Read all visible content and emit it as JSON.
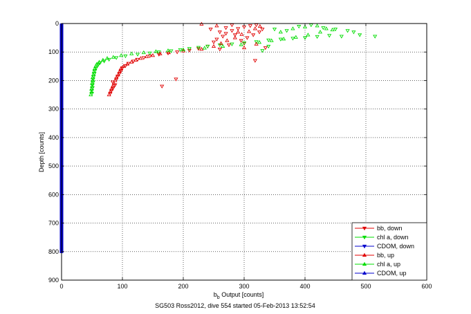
{
  "chart_data": {
    "type": "scatter",
    "xlabel_main": "b",
    "xlabel_sub": "b",
    "xlabel_rest": " Output [counts]",
    "ylabel": "Depth [counts]",
    "caption": "SG503 Ross2012, dive 554 started 05-Feb-2013 13:52:54",
    "xlim": [
      0,
      600
    ],
    "ylim": [
      0,
      900
    ],
    "y_reversed": true,
    "grid": true,
    "legend_position": "bottom-right",
    "x_ticks": [
      0,
      100,
      200,
      300,
      400,
      500,
      600
    ],
    "y_ticks": [
      0,
      100,
      200,
      300,
      400,
      500,
      600,
      700,
      800,
      900
    ],
    "series": [
      {
        "name": "bb, down",
        "color": "#e00000",
        "marker": "triangle-down",
        "points": [
          [
            80,
            245
          ],
          [
            82,
            235
          ],
          [
            85,
            225
          ],
          [
            88,
            215
          ],
          [
            84,
            205
          ],
          [
            90,
            195
          ],
          [
            92,
            185
          ],
          [
            95,
            175
          ],
          [
            98,
            165
          ],
          [
            100,
            155
          ],
          [
            105,
            148
          ],
          [
            110,
            140
          ],
          [
            118,
            132
          ],
          [
            125,
            126
          ],
          [
            135,
            120
          ],
          [
            145,
            114
          ],
          [
            160,
            108
          ],
          [
            175,
            104
          ],
          [
            190,
            100
          ],
          [
            165,
            220
          ],
          [
            188,
            195
          ],
          [
            210,
            94
          ],
          [
            225,
            88
          ],
          [
            240,
            80
          ],
          [
            250,
            65
          ],
          [
            255,
            55
          ],
          [
            265,
            45
          ],
          [
            270,
            35
          ],
          [
            280,
            25
          ],
          [
            290,
            18
          ],
          [
            300,
            12
          ],
          [
            310,
            8
          ],
          [
            320,
            5
          ],
          [
            260,
            90
          ],
          [
            275,
            75
          ],
          [
            295,
            60
          ],
          [
            305,
            50
          ],
          [
            315,
            40
          ],
          [
            325,
            30
          ],
          [
            330,
            20
          ],
          [
            280,
            5
          ],
          [
            270,
            15
          ],
          [
            245,
            20
          ],
          [
            260,
            30
          ],
          [
            318,
            130
          ],
          [
            335,
            85
          ],
          [
            300,
            70
          ],
          [
            285,
            40
          ]
        ]
      },
      {
        "name": "chl a, down",
        "color": "#00dd00",
        "marker": "triangle-down",
        "points": [
          [
            50,
            245
          ],
          [
            50,
            235
          ],
          [
            51,
            225
          ],
          [
            51,
            215
          ],
          [
            52,
            205
          ],
          [
            52,
            195
          ],
          [
            53,
            185
          ],
          [
            54,
            175
          ],
          [
            55,
            165
          ],
          [
            57,
            155
          ],
          [
            60,
            145
          ],
          [
            63,
            138
          ],
          [
            70,
            132
          ],
          [
            78,
            126
          ],
          [
            90,
            120
          ],
          [
            105,
            114
          ],
          [
            125,
            108
          ],
          [
            145,
            104
          ],
          [
            160,
            100
          ],
          [
            180,
            96
          ],
          [
            195,
            92
          ],
          [
            210,
            88
          ],
          [
            225,
            84
          ],
          [
            240,
            80
          ],
          [
            260,
            75
          ],
          [
            280,
            72
          ],
          [
            300,
            68
          ],
          [
            320,
            64
          ],
          [
            340,
            58
          ],
          [
            360,
            55
          ],
          [
            380,
            52
          ],
          [
            400,
            50
          ],
          [
            420,
            46
          ],
          [
            440,
            42
          ],
          [
            460,
            45
          ],
          [
            490,
            40
          ],
          [
            515,
            45
          ],
          [
            350,
            20
          ],
          [
            370,
            25
          ],
          [
            390,
            10
          ],
          [
            410,
            5
          ],
          [
            430,
            15
          ],
          [
            450,
            20
          ],
          [
            470,
            25
          ],
          [
            480,
            30
          ],
          [
            340,
            80
          ],
          [
            330,
            95
          ]
        ]
      },
      {
        "name": "CDOM, down",
        "color": "#0000cc",
        "marker": "triangle-down",
        "points": [
          [
            0,
            0
          ],
          [
            0,
            100
          ],
          [
            0,
            200
          ],
          [
            0,
            300
          ],
          [
            0,
            400
          ],
          [
            0,
            500
          ],
          [
            0,
            600
          ],
          [
            0,
            700
          ],
          [
            0,
            805
          ]
        ]
      },
      {
        "name": "bb, up",
        "color": "#e00000",
        "marker": "triangle-up",
        "points": [
          [
            78,
            250
          ],
          [
            80,
            240
          ],
          [
            82,
            230
          ],
          [
            84,
            220
          ],
          [
            86,
            210
          ],
          [
            88,
            200
          ],
          [
            90,
            190
          ],
          [
            93,
            180
          ],
          [
            95,
            170
          ],
          [
            97,
            160
          ],
          [
            102,
            150
          ],
          [
            108,
            142
          ],
          [
            115,
            135
          ],
          [
            122,
            128
          ],
          [
            130,
            122
          ],
          [
            140,
            116
          ],
          [
            150,
            112
          ],
          [
            162,
            106
          ],
          [
            176,
            102
          ],
          [
            200,
            96
          ],
          [
            230,
            90
          ],
          [
            250,
            80
          ],
          [
            262,
            70
          ],
          [
            272,
            60
          ],
          [
            285,
            50
          ],
          [
            296,
            38
          ],
          [
            308,
            28
          ],
          [
            318,
            18
          ],
          [
            326,
            10
          ],
          [
            300,
            85
          ],
          [
            320,
            72
          ],
          [
            230,
            2
          ],
          [
            255,
            8
          ],
          [
            290,
            30
          ]
        ]
      },
      {
        "name": "chl a, up",
        "color": "#00dd00",
        "marker": "triangle-up",
        "points": [
          [
            48,
            250
          ],
          [
            49,
            240
          ],
          [
            49,
            230
          ],
          [
            50,
            220
          ],
          [
            50,
            210
          ],
          [
            51,
            200
          ],
          [
            51,
            190
          ],
          [
            52,
            180
          ],
          [
            53,
            170
          ],
          [
            54,
            160
          ],
          [
            56,
            150
          ],
          [
            58,
            142
          ],
          [
            62,
            135
          ],
          [
            68,
            128
          ],
          [
            75,
            122
          ],
          [
            85,
            118
          ],
          [
            98,
            112
          ],
          [
            115,
            106
          ],
          [
            135,
            102
          ],
          [
            155,
            98
          ],
          [
            175,
            95
          ],
          [
            200,
            92
          ],
          [
            235,
            86
          ],
          [
            265,
            80
          ],
          [
            295,
            74
          ],
          [
            325,
            66
          ],
          [
            345,
            60
          ],
          [
            365,
            54
          ],
          [
            385,
            48
          ],
          [
            405,
            40
          ],
          [
            425,
            30
          ],
          [
            445,
            22
          ],
          [
            400,
            12
          ],
          [
            380,
            18
          ],
          [
            360,
            30
          ],
          [
            420,
            8
          ],
          [
            435,
            18
          ]
        ]
      },
      {
        "name": "CDOM, up",
        "color": "#0000cc",
        "marker": "triangle-up",
        "points": []
      }
    ]
  }
}
